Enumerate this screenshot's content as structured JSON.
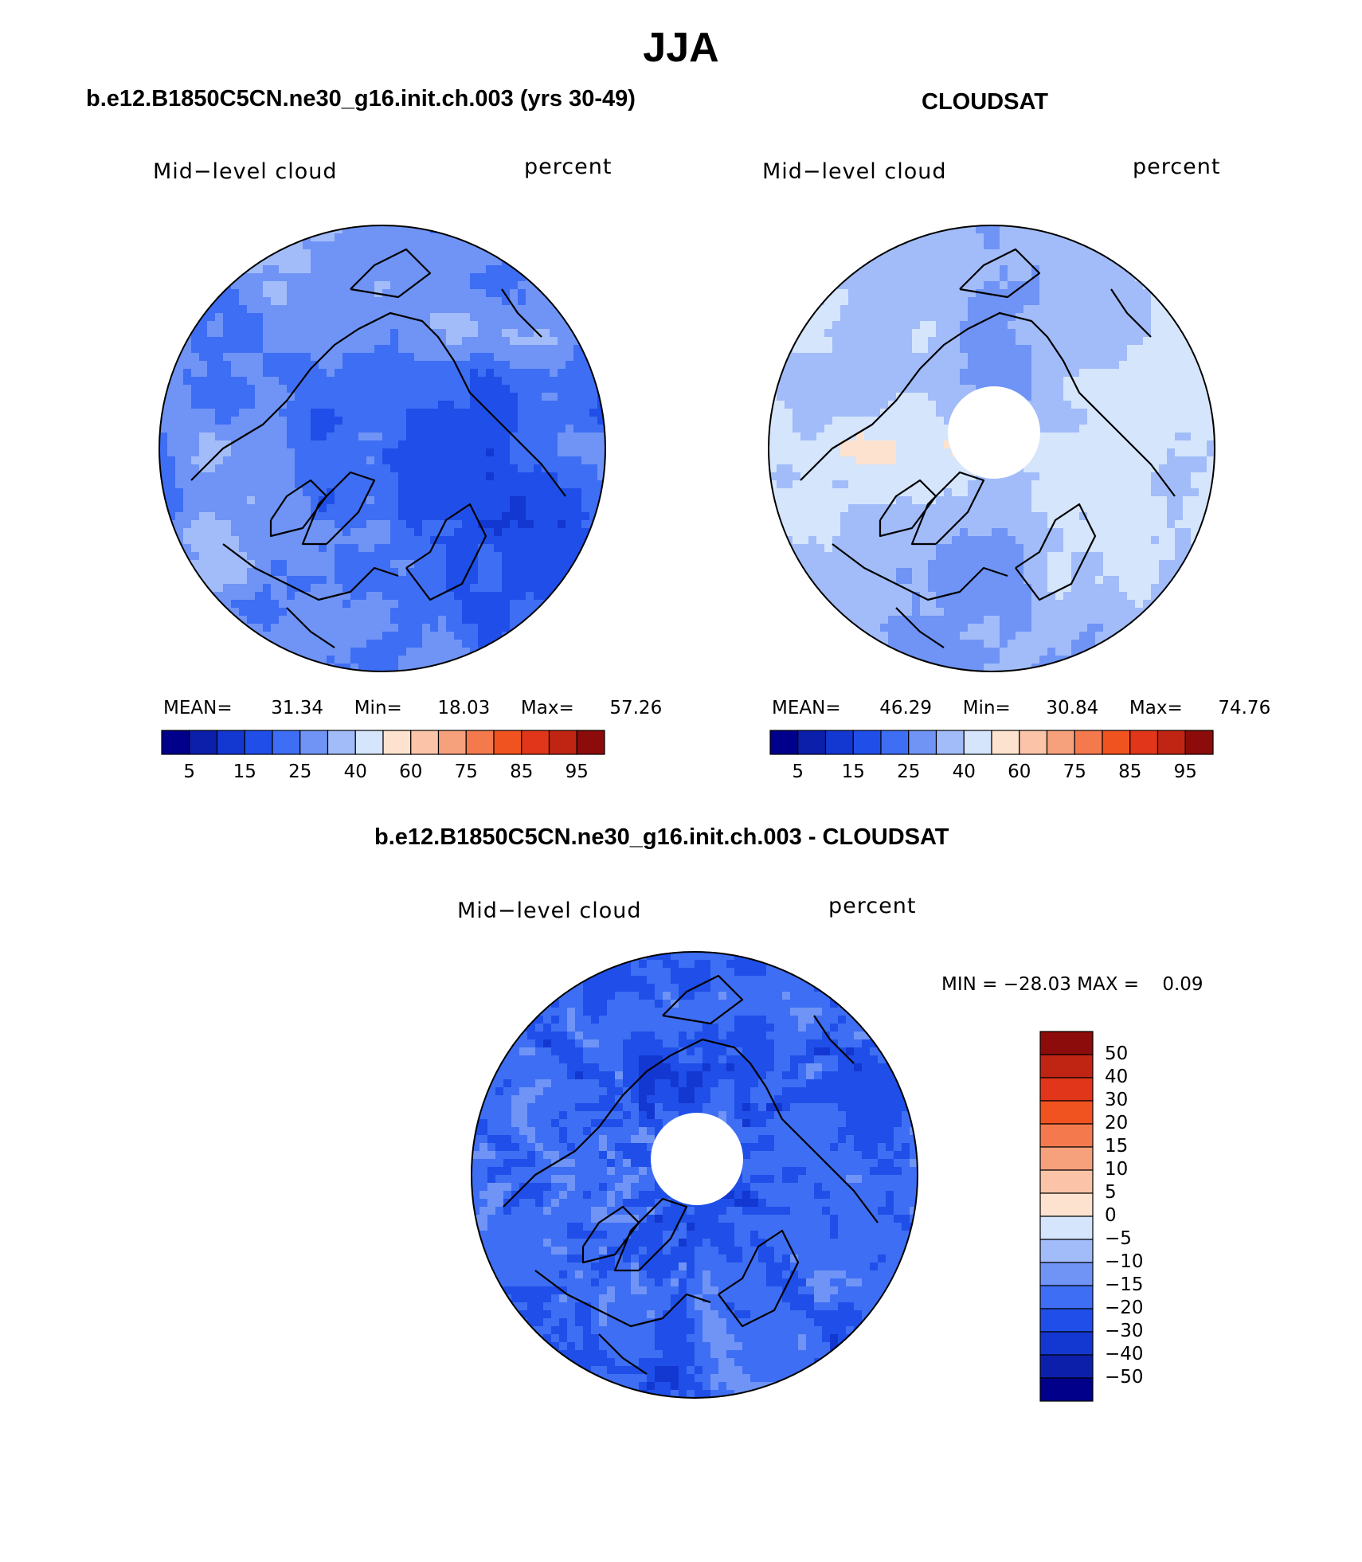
{
  "figure": {
    "title": "JJA",
    "colors": {
      "blue_levels": [
        "#00008b",
        "#0c1fab",
        "#1337d1",
        "#1f4fe8",
        "#3e6ef3",
        "#6f94f6",
        "#a2bcf9",
        "#d5e5fb"
      ],
      "red_levels": [
        "#fde3cf",
        "#fbc4a8",
        "#f7a07c",
        "#f47a4e",
        "#f0531f",
        "#e1361a",
        "#c02514",
        "#8c0b0b"
      ],
      "land_outline": "#000000",
      "missing": "#ffffff"
    }
  },
  "panels": [
    {
      "title": "b.e12.B1850C5CN.ne30_g16.init.ch.003 (yrs 30-49)",
      "variable": "Mid−level cloud",
      "units": "percent",
      "stats": {
        "mean_label": "MEAN=",
        "mean": "31.34",
        "min_label": "Min=",
        "min": "18.03",
        "max_label": "Max=",
        "max": "57.26"
      },
      "colorbar_ticks": [
        "5",
        "15",
        "25",
        "40",
        "60",
        "75",
        "85",
        "95"
      ],
      "field": "model"
    },
    {
      "title": "CLOUDSAT",
      "variable": "Mid−level cloud",
      "units": "percent",
      "stats": {
        "mean_label": "MEAN=",
        "mean": "46.29",
        "min_label": "Min=",
        "min": "30.84",
        "max_label": "Max=",
        "max": "74.76"
      },
      "colorbar_ticks": [
        "5",
        "15",
        "25",
        "40",
        "60",
        "75",
        "85",
        "95"
      ],
      "field": "obs"
    },
    {
      "title": "b.e12.B1850C5CN.ne30_g16.init.ch.003 - CLOUDSAT",
      "variable": "Mid−level cloud",
      "units": "percent",
      "minmax_text": "MIN = −28.03 MAX =    0.09",
      "colorbar_ticks": [
        "50",
        "40",
        "30",
        "20",
        "15",
        "10",
        "5",
        "0",
        "−5",
        "−10",
        "−15",
        "−20",
        "−30",
        "−40",
        "−50"
      ],
      "field": "diff"
    }
  ]
}
